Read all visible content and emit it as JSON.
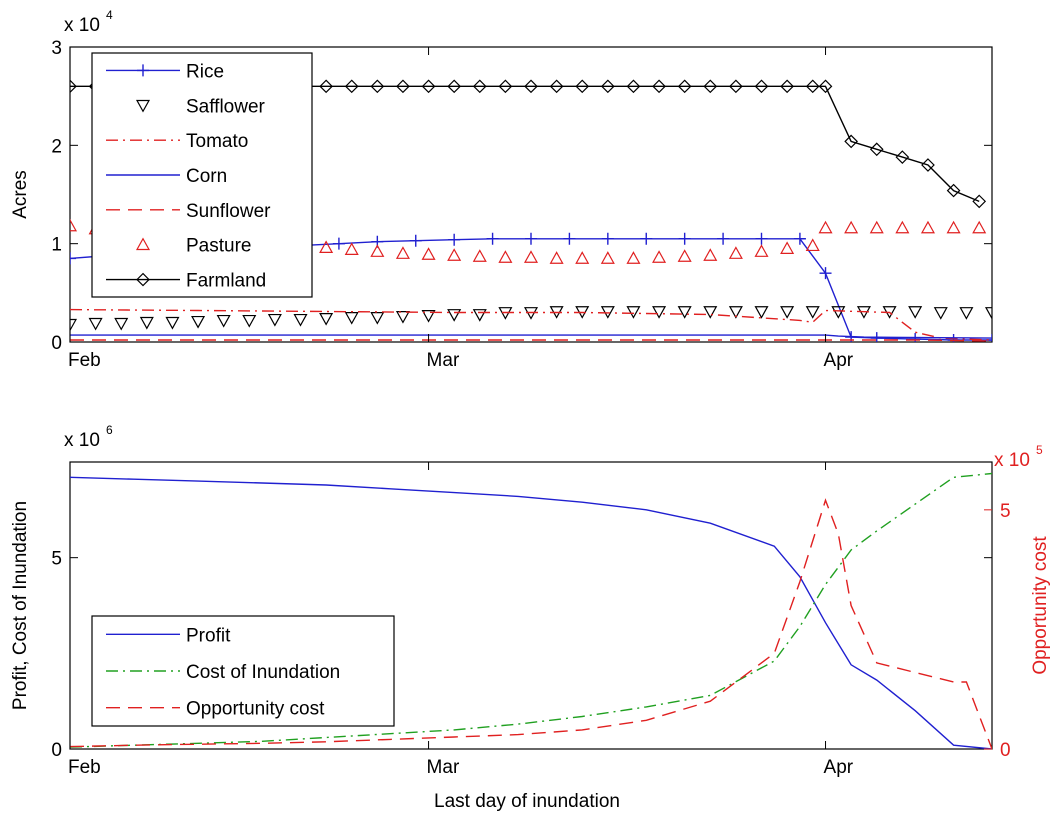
{
  "chart_data": [
    {
      "type": "line",
      "title": "",
      "xlabel": "",
      "ylabel": "Acres",
      "y_exponent_label": "x 10",
      "y_exponent": "4",
      "xlim": [
        0,
        72
      ],
      "ylim": [
        0,
        3
      ],
      "yticks": [
        0,
        1,
        2,
        3
      ],
      "xticks": [
        {
          "pos": 0,
          "label": "Feb"
        },
        {
          "pos": 28,
          "label": "Mar"
        },
        {
          "pos": 59,
          "label": "Apr"
        }
      ],
      "legend_position": "top-left",
      "grid": false,
      "series": [
        {
          "name": "Rice",
          "color": "#2020d0",
          "style": "solid",
          "marker": "plus",
          "x": [
            0,
            3,
            6,
            9,
            12,
            15,
            18,
            21,
            24,
            27,
            30,
            33,
            36,
            39,
            42,
            45,
            48,
            51,
            54,
            57,
            59,
            61,
            63,
            66,
            69,
            72
          ],
          "y": [
            0.85,
            0.88,
            0.9,
            0.92,
            0.94,
            0.96,
            0.98,
            1.0,
            1.02,
            1.03,
            1.04,
            1.05,
            1.05,
            1.05,
            1.05,
            1.05,
            1.05,
            1.05,
            1.05,
            1.05,
            0.7,
            0.05,
            0.04,
            0.03,
            0.02,
            0.02
          ]
        },
        {
          "name": "Safflower",
          "color": "#000000",
          "style": "none",
          "marker": "triangle-down",
          "x": [
            0,
            2,
            4,
            6,
            8,
            10,
            12,
            14,
            16,
            18,
            20,
            22,
            24,
            26,
            28,
            30,
            32,
            34,
            36,
            38,
            40,
            42,
            44,
            46,
            48,
            50,
            52,
            54,
            56,
            58,
            60,
            62,
            64,
            66,
            68,
            70,
            72
          ],
          "y": [
            0.18,
            0.19,
            0.19,
            0.2,
            0.2,
            0.21,
            0.22,
            0.22,
            0.23,
            0.23,
            0.24,
            0.25,
            0.25,
            0.26,
            0.27,
            0.28,
            0.28,
            0.3,
            0.3,
            0.31,
            0.31,
            0.31,
            0.31,
            0.31,
            0.31,
            0.31,
            0.31,
            0.31,
            0.31,
            0.31,
            0.31,
            0.31,
            0.31,
            0.31,
            0.3,
            0.3,
            0.3
          ]
        },
        {
          "name": "Tomato",
          "color": "#e02020",
          "style": "dashdot",
          "marker": "none",
          "x": [
            0,
            10,
            20,
            30,
            40,
            50,
            57,
            58,
            59,
            64,
            66,
            68,
            72
          ],
          "y": [
            0.33,
            0.32,
            0.31,
            0.3,
            0.3,
            0.28,
            0.22,
            0.2,
            0.32,
            0.3,
            0.1,
            0.04,
            0.02
          ]
        },
        {
          "name": "Corn",
          "color": "#2020d0",
          "style": "solid",
          "marker": "none",
          "x": [
            0,
            20,
            40,
            58,
            59,
            60,
            62,
            72
          ],
          "y": [
            0.07,
            0.07,
            0.07,
            0.07,
            0.07,
            0.06,
            0.05,
            0.04
          ]
        },
        {
          "name": "Sunflower",
          "color": "#e02020",
          "style": "dashed",
          "marker": "none",
          "x": [
            0,
            20,
            40,
            58,
            62,
            66,
            72
          ],
          "y": [
            0.02,
            0.02,
            0.02,
            0.02,
            0.02,
            0.02,
            0.01
          ]
        },
        {
          "name": "Pasture",
          "color": "#e02020",
          "style": "none",
          "marker": "triangle-up",
          "x": [
            0,
            2,
            4,
            6,
            8,
            10,
            12,
            14,
            16,
            18,
            20,
            22,
            24,
            26,
            28,
            30,
            32,
            34,
            36,
            38,
            40,
            42,
            44,
            46,
            48,
            50,
            52,
            54,
            56,
            58,
            59,
            61,
            63,
            65,
            67,
            69,
            71
          ],
          "y": [
            1.18,
            1.15,
            1.12,
            1.1,
            1.08,
            1.06,
            1.04,
            1.02,
            1.0,
            0.98,
            0.96,
            0.94,
            0.92,
            0.9,
            0.89,
            0.88,
            0.87,
            0.86,
            0.86,
            0.85,
            0.85,
            0.85,
            0.85,
            0.86,
            0.87,
            0.88,
            0.9,
            0.92,
            0.95,
            0.98,
            1.16,
            1.16,
            1.16,
            1.16,
            1.16,
            1.16,
            1.16
          ]
        },
        {
          "name": "Farmland",
          "color": "#000000",
          "style": "solid",
          "marker": "diamond",
          "x": [
            0,
            2,
            4,
            6,
            8,
            10,
            12,
            14,
            16,
            18,
            20,
            22,
            24,
            26,
            28,
            30,
            32,
            34,
            36,
            38,
            40,
            42,
            44,
            46,
            48,
            50,
            52,
            54,
            56,
            58,
            59,
            61,
            63,
            65,
            67,
            69,
            71
          ],
          "y": [
            2.6,
            2.6,
            2.6,
            2.6,
            2.6,
            2.6,
            2.6,
            2.6,
            2.6,
            2.6,
            2.6,
            2.6,
            2.6,
            2.6,
            2.6,
            2.6,
            2.6,
            2.6,
            2.6,
            2.6,
            2.6,
            2.6,
            2.6,
            2.6,
            2.6,
            2.6,
            2.6,
            2.6,
            2.6,
            2.6,
            2.6,
            2.04,
            1.96,
            1.88,
            1.8,
            1.54,
            1.43
          ]
        }
      ]
    },
    {
      "type": "line",
      "title": "",
      "xlabel": "Last day of inundation",
      "ylabel": "Profit, Cost of Inundation",
      "ylabel_right": "Opportunity cost",
      "y_exponent_label": "x 10",
      "y_exponent": "6",
      "y_right_exponent_label": "x 10",
      "y_right_exponent": "5",
      "xlim": [
        0,
        72
      ],
      "ylim": [
        0,
        7.5
      ],
      "ylim_right": [
        0,
        6
      ],
      "yticks": [
        0,
        5
      ],
      "yticks_right": [
        0,
        5
      ],
      "xticks": [
        {
          "pos": 0,
          "label": "Feb"
        },
        {
          "pos": 28,
          "label": "Mar"
        },
        {
          "pos": 59,
          "label": "Apr"
        }
      ],
      "legend_position": "bottom-left",
      "grid": false,
      "series": [
        {
          "name": "Profit",
          "color": "#2020d0",
          "style": "solid",
          "axis": "left",
          "x": [
            0,
            5,
            10,
            15,
            20,
            25,
            30,
            35,
            40,
            45,
            50,
            55,
            57,
            59,
            61,
            63,
            66,
            69,
            72
          ],
          "y": [
            7.1,
            7.05,
            7.0,
            6.95,
            6.9,
            6.8,
            6.7,
            6.6,
            6.45,
            6.25,
            5.9,
            5.3,
            4.5,
            3.3,
            2.2,
            1.8,
            1.0,
            0.1,
            0.0
          ]
        },
        {
          "name": "Cost of Inundation",
          "color": "#20a020",
          "style": "dashdot",
          "axis": "left",
          "x": [
            0,
            5,
            10,
            15,
            20,
            25,
            30,
            35,
            40,
            45,
            50,
            55,
            57,
            59,
            61,
            63,
            66,
            69,
            72
          ],
          "y": [
            0.05,
            0.1,
            0.15,
            0.2,
            0.3,
            0.4,
            0.5,
            0.65,
            0.85,
            1.1,
            1.4,
            2.3,
            3.2,
            4.3,
            5.2,
            5.7,
            6.4,
            7.1,
            7.2
          ]
        },
        {
          "name": "Opportunity cost",
          "color": "#e02020",
          "style": "dashed",
          "axis": "right",
          "x": [
            0,
            5,
            10,
            15,
            20,
            25,
            30,
            35,
            40,
            45,
            50,
            55,
            57,
            59,
            60,
            61,
            63,
            66,
            69,
            70,
            72
          ],
          "y": [
            0.05,
            0.08,
            0.1,
            0.12,
            0.15,
            0.2,
            0.25,
            0.3,
            0.4,
            0.6,
            1.0,
            2.0,
            3.5,
            5.2,
            4.5,
            3.0,
            1.8,
            1.6,
            1.4,
            1.4,
            0.0
          ]
        }
      ]
    }
  ]
}
